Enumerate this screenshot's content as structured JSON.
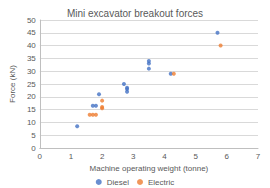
{
  "chart_data": {
    "type": "scatter",
    "title": "Mini excavator breakout forces",
    "x_label": "Machine operating weight (tonne)",
    "y_label": "Force (kN)",
    "series": [
      {
        "name": "Diesel",
        "color": "#4472c4",
        "marker": "circle",
        "x": [
          1.2,
          1.7,
          1.8,
          1.9,
          2.7,
          2.8,
          2.8,
          2.8,
          3.5,
          3.5,
          3.5,
          4.2,
          5.7
        ],
        "values": [
          8.5,
          16.5,
          16.5,
          21,
          25,
          23,
          22,
          23.5,
          31,
          33,
          34,
          29,
          45
        ]
      },
      {
        "name": "Electric",
        "color": "#ed7d31",
        "marker": "circle",
        "x": [
          1.6,
          1.7,
          1.8,
          2.0,
          2.0,
          2.0,
          4.3,
          5.8
        ],
        "values": [
          13,
          13,
          13,
          15.5,
          16,
          18.5,
          29,
          40
        ]
      }
    ],
    "xlim": [
      0,
      7
    ],
    "xticks": [
      0,
      1,
      2,
      3,
      4,
      5,
      6,
      7
    ],
    "ylim": [
      0,
      50
    ],
    "yticks": [
      0,
      5,
      10,
      15,
      20,
      25,
      30,
      35,
      40,
      45,
      50
    ],
    "grid": true,
    "legend": "bottom"
  }
}
